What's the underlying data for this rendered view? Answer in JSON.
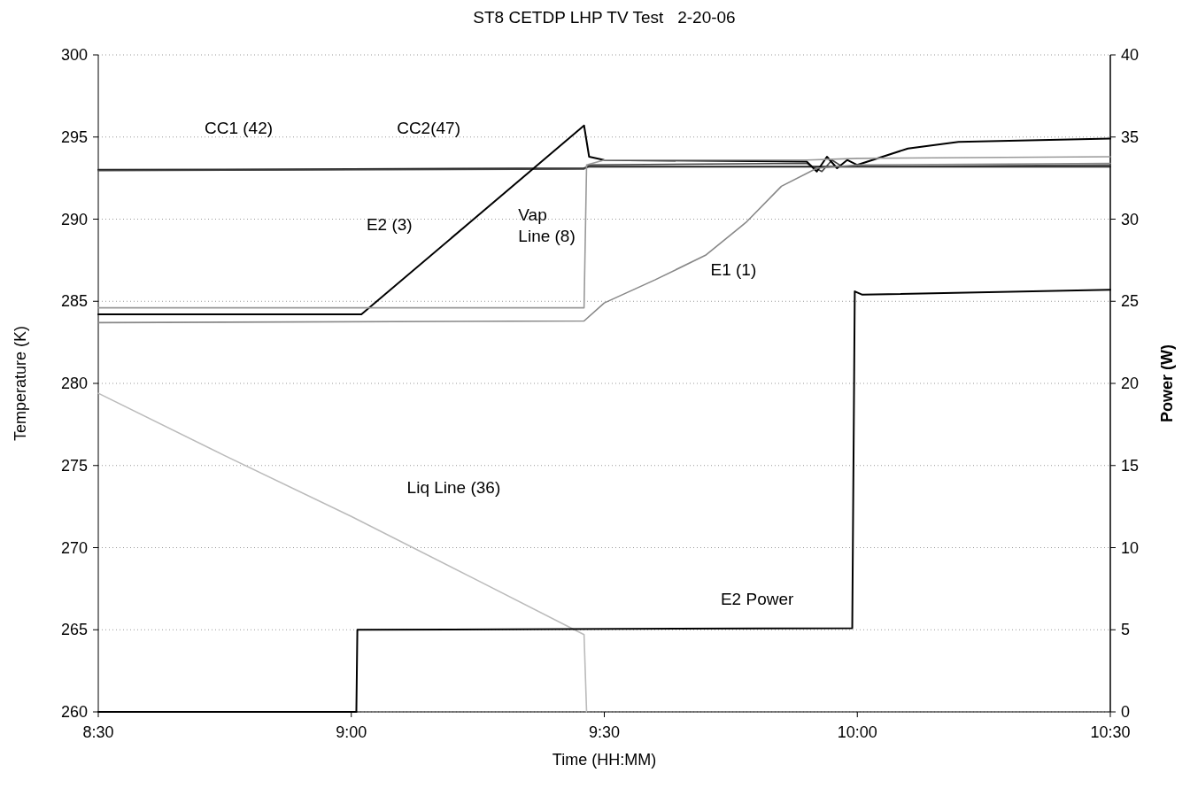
{
  "chart_data": {
    "type": "line",
    "title": "ST8 CETDP LHP TV Test   2-20-06",
    "xlabel": "Time (HH:MM)",
    "ylabel": "Temperature (K)",
    "y2label": "Power (W)",
    "xlim": [
      8.5,
      10.5
    ],
    "xticks": [
      {
        "value": 8.5,
        "label": "8:30"
      },
      {
        "value": 9,
        "label": "9:00"
      },
      {
        "value": 9.5,
        "label": "9:30"
      },
      {
        "value": 10,
        "label": "10:00"
      },
      {
        "value": 10.5,
        "label": "10:30"
      }
    ],
    "ylim": [
      260,
      300
    ],
    "yticks": [
      260,
      265,
      270,
      275,
      280,
      285,
      290,
      295,
      300
    ],
    "y2lim": [
      0,
      40
    ],
    "y2ticks": [
      0,
      5,
      10,
      15,
      20,
      25,
      30,
      35,
      40
    ],
    "grid": "y",
    "line_style": "solid",
    "series": [
      {
        "name": "CC1 (42)",
        "color": "#222222",
        "x": [
          8.5,
          9.0,
          9.46,
          9.47,
          9.9,
          10.0,
          10.5
        ],
        "values": [
          293.0,
          293.05,
          293.1,
          293.2,
          293.2,
          293.2,
          293.2
        ]
      },
      {
        "name": "CC2(47)",
        "color": "#444444",
        "x": [
          8.5,
          9.46,
          9.47,
          9.9,
          9.93,
          9.95,
          9.97,
          10.5
        ],
        "values": [
          292.95,
          293.05,
          293.3,
          293.4,
          292.9,
          293.6,
          293.2,
          293.3
        ]
      },
      {
        "name": "E2 (3)",
        "color": "#000000",
        "x": [
          8.5,
          9.02,
          9.46,
          9.47,
          9.5,
          9.9,
          9.92,
          9.94,
          9.96,
          9.98,
          10.0,
          10.1,
          10.2,
          10.5
        ],
        "values": [
          284.2,
          284.2,
          295.7,
          293.8,
          293.6,
          293.5,
          292.9,
          293.8,
          293.1,
          293.6,
          293.3,
          294.3,
          294.7,
          294.9
        ]
      },
      {
        "name": "Vap Line (8)",
        "color": "#999999",
        "x": [
          8.5,
          9.46,
          9.465,
          9.5,
          9.9,
          10.0,
          10.5
        ],
        "values": [
          284.6,
          284.6,
          293.3,
          293.6,
          293.6,
          293.7,
          293.8
        ]
      },
      {
        "name": "E1 (1)",
        "color": "#888888",
        "x": [
          8.5,
          9.46,
          9.5,
          9.6,
          9.7,
          9.78,
          9.85,
          9.92,
          10.0,
          10.5
        ],
        "values": [
          283.7,
          283.8,
          284.9,
          286.3,
          287.8,
          289.8,
          292.0,
          293.1,
          293.3,
          293.4
        ]
      },
      {
        "name": "Liq Line (36)",
        "color": "#bbbbbb",
        "x": [
          8.5,
          8.75,
          9.0,
          9.25,
          9.46,
          9.465
        ],
        "values": [
          279.4,
          275.6,
          271.9,
          268.0,
          264.7,
          260.0
        ]
      },
      {
        "name": "E2 Power",
        "color": "#000000",
        "axis": "y2",
        "x": [
          8.5,
          9.01,
          9.012,
          9.99,
          9.995,
          10.01,
          10.5
        ],
        "values": [
          0,
          0,
          5,
          5.1,
          25.6,
          25.4,
          25.7
        ]
      }
    ]
  }
}
